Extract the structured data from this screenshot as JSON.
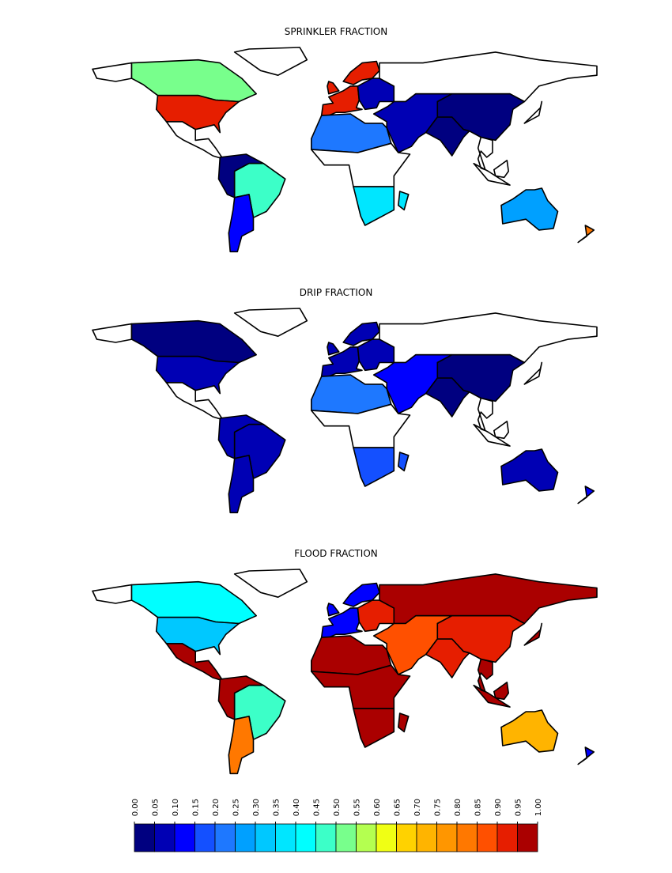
{
  "panels": [
    {
      "title": "SPRINKLER FRACTION",
      "values": [
        null,
        0.52,
        null,
        0.9,
        null,
        0.02,
        0.45,
        0.1,
        0.9,
        0.05,
        null,
        0.05,
        0.2,
        null,
        0.35,
        0.02,
        0.02,
        null,
        0.27,
        0.8
      ]
    },
    {
      "title": "DRIP FRACTION",
      "values": [
        null,
        0.02,
        null,
        0.05,
        null,
        0.07,
        0.07,
        0.07,
        0.07,
        0.05,
        null,
        0.1,
        0.2,
        null,
        0.15,
        0.02,
        0.02,
        null,
        0.07,
        0.1
      ]
    },
    {
      "title": "FLOOD FRACTION",
      "values": [
        null,
        0.4,
        null,
        0.3,
        0.97,
        0.97,
        0.47,
        0.8,
        0.1,
        0.9,
        0.97,
        0.85,
        0.97,
        0.97,
        0.97,
        0.93,
        0.93,
        0.97,
        0.72,
        0.1
      ]
    }
  ],
  "colorbar": {
    "ticks": [
      {
        "value": 0,
        "label": "0.00"
      },
      {
        "value": 0.05,
        "label": "0.05"
      },
      {
        "value": 0.1,
        "label": "0.10"
      },
      {
        "value": 0.15,
        "label": "0.15"
      },
      {
        "value": 0.2,
        "label": "0.20"
      },
      {
        "value": 0.25,
        "label": "0.25"
      },
      {
        "value": 0.3,
        "label": "0.30"
      },
      {
        "value": 0.35,
        "label": "0.35"
      },
      {
        "value": 0.4,
        "label": "0.40"
      },
      {
        "value": 0.45,
        "label": "0.45"
      },
      {
        "value": 0.5,
        "label": "0.50"
      },
      {
        "value": 0.55,
        "label": "0.55"
      },
      {
        "value": 0.6,
        "label": "0.60"
      },
      {
        "value": 0.65,
        "label": "0.65"
      },
      {
        "value": 0.7,
        "label": "0.70"
      },
      {
        "value": 0.75,
        "label": "0.75"
      },
      {
        "value": 0.8,
        "label": "0.80"
      },
      {
        "value": 0.85,
        "label": "0.85"
      },
      {
        "value": 0.9,
        "label": "0.90"
      },
      {
        "value": 0.95,
        "label": "0.95"
      },
      {
        "value": 1,
        "label": "1.00"
      }
    ],
    "colors": [
      "#000080",
      "#0000b4",
      "#0000ff",
      "#1450ff",
      "#1e78ff",
      "#00a0ff",
      "#00c8ff",
      "#00e6ff",
      "#00ffff",
      "#3cffc8",
      "#78ff8c",
      "#b4ff50",
      "#f0ff14",
      "#ffd200",
      "#ffb400",
      "#ff9600",
      "#ff7800",
      "#ff5000",
      "#e61e00",
      "#aa0000"
    ]
  }
}
